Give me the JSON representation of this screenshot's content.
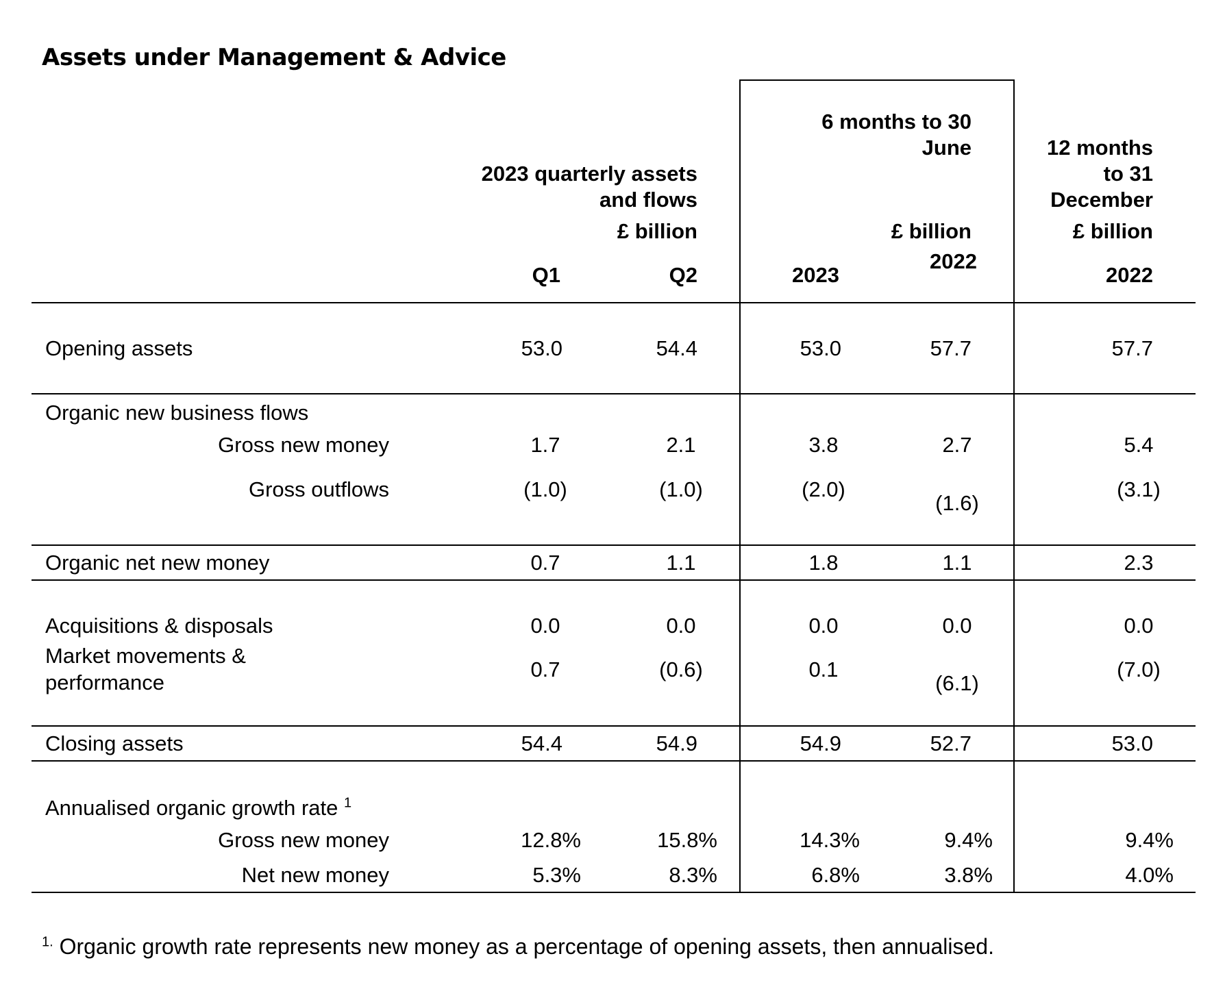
{
  "title": "Assets under Management & Advice",
  "headers": {
    "quarterly": [
      "2023 quarterly assets",
      "and flows",
      "£ billion"
    ],
    "six_months": [
      "6 months to 30",
      "June",
      "£ billion"
    ],
    "twelve_months": [
      "12 months",
      "to 31",
      "December",
      "£ billion"
    ],
    "columns": [
      "Q1",
      "Q2",
      "2023",
      "2022",
      "2022"
    ]
  },
  "rows": {
    "opening": {
      "label": "Opening assets",
      "values": [
        "53.0",
        "54.4",
        "53.0",
        "57.7",
        "57.7"
      ]
    },
    "organic_heading": {
      "label": "Organic new business flows"
    },
    "gross_new_money": {
      "label": "Gross new money",
      "values": [
        "1.7",
        "2.1",
        "3.8",
        "2.7",
        "5.4"
      ]
    },
    "gross_outflows": {
      "label": "Gross outflows",
      "values": [
        "(1.0)",
        "(1.0)",
        "(2.0)",
        "(1.6)",
        "(3.1)"
      ]
    },
    "organic_net": {
      "label": "Organic net new money",
      "values": [
        "0.7",
        "1.1",
        "1.8",
        "1.1",
        "2.3"
      ]
    },
    "acquisitions": {
      "label": "Acquisitions & disposals",
      "values": [
        "0.0",
        "0.0",
        "0.0",
        "0.0",
        "0.0"
      ]
    },
    "market": {
      "label_line1": "Market movements &",
      "label_line2": "performance",
      "values": [
        "0.7",
        "(0.6)",
        "0.1",
        "(6.1)",
        "(7.0)"
      ]
    },
    "closing": {
      "label": "Closing assets",
      "values": [
        "54.4",
        "54.9",
        "54.9",
        "52.7",
        "53.0"
      ]
    },
    "growth_heading": {
      "label": "Annualised organic growth rate",
      "sup": "1"
    },
    "growth_gross": {
      "label": "Gross new money",
      "values": [
        "12.8%",
        "15.8%",
        "14.3%",
        "9.4%",
        "9.4%"
      ]
    },
    "growth_net": {
      "label": "Net new money",
      "values": [
        "5.3%",
        "8.3%",
        "6.8%",
        "3.8%",
        "4.0%"
      ]
    }
  },
  "footnote": {
    "marker": "1.",
    "text": "Organic growth rate represents new money as a percentage of opening assets, then annualised."
  }
}
